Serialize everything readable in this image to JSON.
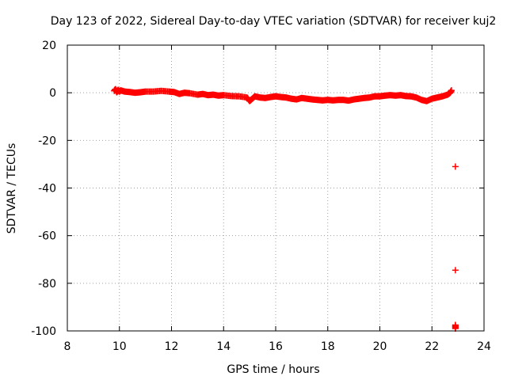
{
  "chart_data": {
    "type": "scatter",
    "title": "Day 123 of 2022, Sidereal Day-to-day VTEC variation (SDTVAR) for receiver kuj2",
    "xlabel": "GPS time / hours",
    "ylabel": "SDTVAR / TECUs",
    "xlim": [
      8,
      24
    ],
    "ylim": [
      -100,
      20
    ],
    "xticks": [
      8,
      10,
      12,
      14,
      16,
      18,
      20,
      22,
      24
    ],
    "yticks": [
      -100,
      -80,
      -60,
      -40,
      -20,
      0,
      20
    ],
    "grid": true,
    "marker": "plus",
    "series": [
      {
        "color": "#ff0000",
        "points": [
          [
            9.8,
            0.8
          ],
          [
            9.85,
            1.5
          ],
          [
            9.9,
            0.2
          ],
          [
            9.95,
            1.2
          ],
          [
            10.0,
            0.5
          ],
          [
            10.05,
            1.0
          ],
          [
            10.2,
            0.5
          ],
          [
            10.4,
            0.3
          ],
          [
            10.6,
            0.0
          ],
          [
            10.8,
            0.2
          ],
          [
            11.0,
            0.5
          ],
          [
            11.3,
            0.5
          ],
          [
            11.6,
            0.8
          ],
          [
            11.9,
            0.5
          ],
          [
            12.1,
            0.3
          ],
          [
            12.3,
            -0.5
          ],
          [
            12.5,
            0.0
          ],
          [
            12.7,
            -0.2
          ],
          [
            13.0,
            -0.8
          ],
          [
            13.2,
            -0.5
          ],
          [
            13.4,
            -1.0
          ],
          [
            13.6,
            -0.8
          ],
          [
            13.8,
            -1.2
          ],
          [
            14.0,
            -1.0
          ],
          [
            14.3,
            -1.4
          ],
          [
            14.6,
            -1.5
          ],
          [
            14.9,
            -2.0
          ],
          [
            15.0,
            -3.5
          ],
          [
            15.1,
            -2.5
          ],
          [
            15.2,
            -1.5
          ],
          [
            15.4,
            -2.0
          ],
          [
            15.6,
            -2.2
          ],
          [
            15.8,
            -1.8
          ],
          [
            16.0,
            -1.5
          ],
          [
            16.2,
            -1.8
          ],
          [
            16.4,
            -2.0
          ],
          [
            16.6,
            -2.5
          ],
          [
            16.8,
            -2.8
          ],
          [
            17.0,
            -2.2
          ],
          [
            17.2,
            -2.5
          ],
          [
            17.4,
            -2.8
          ],
          [
            17.6,
            -3.0
          ],
          [
            17.8,
            -3.2
          ],
          [
            18.0,
            -3.0
          ],
          [
            18.2,
            -3.2
          ],
          [
            18.4,
            -3.0
          ],
          [
            18.6,
            -3.0
          ],
          [
            18.8,
            -3.3
          ],
          [
            19.0,
            -2.8
          ],
          [
            19.2,
            -2.5
          ],
          [
            19.4,
            -2.2
          ],
          [
            19.6,
            -2.0
          ],
          [
            19.8,
            -1.5
          ],
          [
            20.0,
            -1.5
          ],
          [
            20.2,
            -1.2
          ],
          [
            20.4,
            -1.0
          ],
          [
            20.6,
            -1.2
          ],
          [
            20.8,
            -1.0
          ],
          [
            21.0,
            -1.4
          ],
          [
            21.2,
            -1.5
          ],
          [
            21.4,
            -2.0
          ],
          [
            21.6,
            -3.0
          ],
          [
            21.8,
            -3.5
          ],
          [
            22.0,
            -2.5
          ],
          [
            22.2,
            -2.0
          ],
          [
            22.4,
            -1.5
          ],
          [
            22.6,
            -0.8
          ],
          [
            22.7,
            0.0
          ],
          [
            22.75,
            1.0
          ],
          [
            22.9,
            -31
          ],
          [
            22.9,
            -74.5
          ],
          [
            22.9,
            -97.5
          ],
          [
            22.9,
            -99
          ]
        ]
      }
    ]
  }
}
